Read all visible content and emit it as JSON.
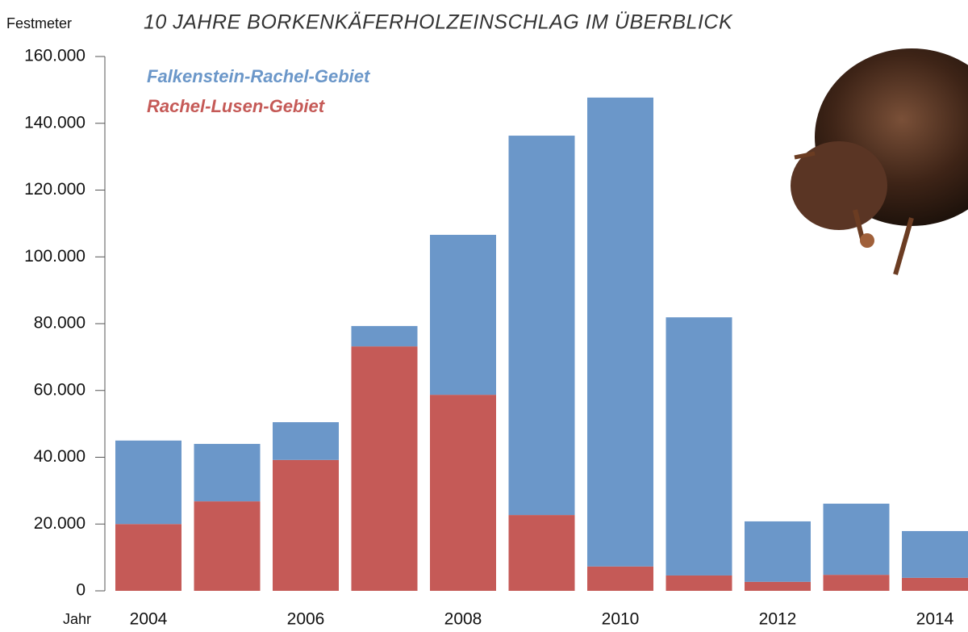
{
  "chart_data": {
    "type": "stacked-bar",
    "title": "10 JAHRE BORKENKÄFERHOLZEINSCHLAG IM ÜBERBLICK",
    "y_label": "Festmeter",
    "x_label": "Jahr",
    "categories": [
      "2004",
      null,
      "2006",
      null,
      "2008",
      null,
      "2010",
      null,
      "2012",
      null,
      "2014"
    ],
    "series": [
      {
        "name": "Falkenstein-Rachel-Gebiet",
        "color": "#6b97c9",
        "values": [
          25000,
          17200,
          11300,
          6100,
          47900,
          113600,
          140400,
          77300,
          18100,
          21300,
          14000
        ]
      },
      {
        "name": "Rachel-Lusen-Gebiet",
        "color": "#c55a57",
        "values": [
          20000,
          26800,
          39200,
          73200,
          58700,
          22700,
          7300,
          4600,
          2700,
          4800,
          3900
        ]
      }
    ],
    "ylim": [
      0,
      160000
    ],
    "yticks": [
      0,
      {
        "value": 20000,
        "label": "20.000"
      },
      {
        "value": 40000,
        "label": "40.000"
      },
      {
        "value": 60000,
        "label": "60.000"
      },
      {
        "value": 80000,
        "label": "80.000"
      },
      {
        "value": 100000,
        "label": "100.000"
      },
      {
        "value": 120000,
        "label": "120.000"
      },
      {
        "value": 140000,
        "label": "140.000"
      },
      {
        "value": 160000,
        "label": "160.000"
      }
    ]
  }
}
